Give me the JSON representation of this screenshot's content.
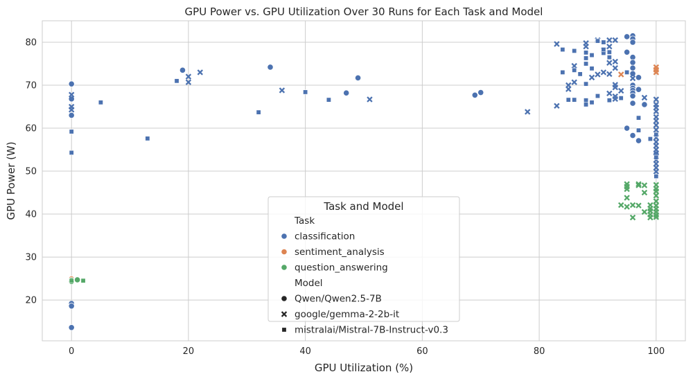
{
  "chart_data": {
    "type": "scatter",
    "title": "GPU Power vs. GPU Utilization Over 30 Runs for Each Task and Model",
    "xlabel": "GPU Utilization (%)",
    "ylabel": "GPU Power (W)",
    "xlim": [
      -5,
      105
    ],
    "ylim": [
      10.5,
      85
    ],
    "xticks": [
      0,
      20,
      40,
      60,
      80,
      100
    ],
    "yticks": [
      20,
      30,
      40,
      50,
      60,
      70,
      80
    ],
    "grid": true,
    "colors": {
      "classification": "#4c72b0",
      "sentiment_analysis": "#dd8452",
      "question_answering": "#55a868",
      "grid": "#cccccc",
      "axes_edge": "#cccccc"
    },
    "legend": {
      "title": "Task and Model",
      "placement": "bottom-center",
      "task_header": "Task",
      "model_header": "Model",
      "tasks": [
        "classification",
        "sentiment_analysis",
        "question_answering"
      ],
      "models": [
        {
          "name": "Qwen/Qwen2.5-7B",
          "marker": "circle"
        },
        {
          "name": "google/gemma-2-2b-it",
          "marker": "x"
        },
        {
          "name": "mistralai/Mistral-7B-Instruct-v0.3",
          "marker": "square"
        }
      ]
    },
    "series": [
      {
        "task": "classification",
        "model": "Qwen/Qwen2.5-7B",
        "marker": "circle",
        "points": [
          [
            0,
            70.3
          ],
          [
            0,
            66.8
          ],
          [
            0,
            63
          ],
          [
            0,
            19.2
          ],
          [
            0,
            18.6
          ],
          [
            0,
            13.6
          ],
          [
            19,
            73.5
          ],
          [
            34,
            74.2
          ],
          [
            47,
            68.2
          ],
          [
            49,
            71.7
          ],
          [
            69,
            67.7
          ],
          [
            70,
            68.3
          ],
          [
            95,
            81.3
          ],
          [
            96,
            81.5
          ],
          [
            96,
            80.8
          ],
          [
            96,
            80
          ],
          [
            95,
            77.7
          ],
          [
            96,
            76.5
          ],
          [
            96,
            75.3
          ],
          [
            96,
            74
          ],
          [
            96,
            72.7
          ],
          [
            96,
            70
          ],
          [
            96,
            69.3
          ],
          [
            96,
            68.8
          ],
          [
            96,
            68.2
          ],
          [
            96,
            67.5
          ],
          [
            96,
            65.8
          ],
          [
            97,
            69
          ],
          [
            97,
            71.8
          ],
          [
            98,
            65.5
          ],
          [
            95,
            60
          ],
          [
            96,
            58.3
          ],
          [
            97,
            57.1
          ],
          [
            100,
            54
          ]
        ]
      },
      {
        "task": "classification",
        "model": "google/gemma-2-2b-it",
        "marker": "x",
        "points": [
          [
            0,
            67.8
          ],
          [
            0,
            65
          ],
          [
            0,
            64.3
          ],
          [
            20,
            72
          ],
          [
            20,
            70.7
          ],
          [
            22,
            73
          ],
          [
            36,
            68.8
          ],
          [
            51,
            66.7
          ],
          [
            78,
            63.8
          ],
          [
            83,
            79.6
          ],
          [
            83,
            65.2
          ],
          [
            85,
            70
          ],
          [
            85,
            69.1
          ],
          [
            86,
            74.5
          ],
          [
            86,
            70.7
          ],
          [
            88,
            79.8
          ],
          [
            88,
            79
          ],
          [
            89,
            71.8
          ],
          [
            90,
            80.5
          ],
          [
            90,
            72.5
          ],
          [
            91,
            73
          ],
          [
            91,
            78.2
          ],
          [
            92,
            80.5
          ],
          [
            92,
            79
          ],
          [
            92,
            75.2
          ],
          [
            92,
            72.6
          ],
          [
            92,
            68.1
          ],
          [
            93,
            80.5
          ],
          [
            93,
            75.5
          ],
          [
            93,
            74
          ],
          [
            93,
            70.1
          ],
          [
            93,
            69.5
          ],
          [
            93,
            67.4
          ],
          [
            93,
            66.8
          ],
          [
            94,
            68.7
          ],
          [
            96,
            71.6
          ],
          [
            98,
            67.1
          ],
          [
            100,
            66.7
          ],
          [
            100,
            65.5
          ],
          [
            100,
            64.8
          ],
          [
            100,
            63.9
          ],
          [
            100,
            62.6
          ],
          [
            100,
            61.7
          ],
          [
            100,
            60.7
          ],
          [
            100,
            59.6
          ],
          [
            100,
            58.7
          ],
          [
            100,
            57.8
          ],
          [
            100,
            56.8
          ],
          [
            100,
            55.9
          ],
          [
            100,
            55
          ],
          [
            100,
            54.2
          ],
          [
            100,
            53.4
          ],
          [
            100,
            52.6
          ],
          [
            100,
            51.7
          ],
          [
            100,
            50.8
          ],
          [
            100,
            49.9
          ]
        ]
      },
      {
        "task": "classification",
        "model": "mistralai/Mistral-7B-Instruct-v0.3",
        "marker": "square",
        "points": [
          [
            0,
            59.2
          ],
          [
            0,
            54.3
          ],
          [
            5,
            66
          ],
          [
            13,
            57.6
          ],
          [
            18,
            71
          ],
          [
            32,
            63.7
          ],
          [
            40,
            68.4
          ],
          [
            44,
            66.6
          ],
          [
            84,
            78.3
          ],
          [
            84,
            73
          ],
          [
            85,
            66.6
          ],
          [
            86,
            78
          ],
          [
            86,
            73.5
          ],
          [
            86,
            66.6
          ],
          [
            87,
            72.6
          ],
          [
            88,
            77.6
          ],
          [
            88,
            76.3
          ],
          [
            88,
            75
          ],
          [
            88,
            70.3
          ],
          [
            88,
            66.5
          ],
          [
            88,
            65.5
          ],
          [
            89,
            77
          ],
          [
            89,
            73.9
          ],
          [
            89,
            66
          ],
          [
            90,
            80.3
          ],
          [
            90,
            67.5
          ],
          [
            91,
            77.5
          ],
          [
            91,
            80
          ],
          [
            91,
            78.3
          ],
          [
            92,
            77.7
          ],
          [
            92,
            76.5
          ],
          [
            92,
            66.5
          ],
          [
            94,
            67
          ],
          [
            95,
            73
          ],
          [
            97,
            62.4
          ],
          [
            97,
            59.5
          ],
          [
            99,
            57.5
          ],
          [
            100,
            58.5
          ],
          [
            100,
            53.2
          ],
          [
            100,
            48.8
          ]
        ]
      },
      {
        "task": "sentiment_analysis",
        "model": "google/gemma-2-2b-it",
        "marker": "x",
        "points": [
          [
            94,
            72.5
          ],
          [
            100,
            74.2
          ],
          [
            100,
            73.6
          ],
          [
            100,
            73
          ]
        ]
      },
      {
        "task": "sentiment_analysis",
        "model": "Qwen/Qwen2.5-7B",
        "marker": "circle",
        "points": [
          [
            0,
            24.9
          ]
        ]
      },
      {
        "task": "question_answering",
        "model": "Qwen/Qwen2.5-7B",
        "marker": "circle",
        "points": [
          [
            0,
            24.6
          ],
          [
            0,
            24.3
          ],
          [
            1,
            24.7
          ]
        ]
      },
      {
        "task": "question_answering",
        "model": "mistralai/Mistral-7B-Instruct-v0.3",
        "marker": "square",
        "points": [
          [
            0,
            24.5
          ],
          [
            2,
            24.5
          ]
        ]
      },
      {
        "task": "question_answering",
        "model": "google/gemma-2-2b-it",
        "marker": "x",
        "points": [
          [
            94,
            42.1
          ],
          [
            95,
            47
          ],
          [
            95,
            46.4
          ],
          [
            95,
            45.8
          ],
          [
            95,
            43.8
          ],
          [
            95,
            41.7
          ],
          [
            96,
            42.1
          ],
          [
            96,
            39.2
          ],
          [
            97,
            47
          ],
          [
            97,
            46.7
          ],
          [
            97,
            42
          ],
          [
            98,
            46.7
          ],
          [
            98,
            45
          ],
          [
            98,
            40.5
          ],
          [
            99,
            42.1
          ],
          [
            99,
            41.3
          ],
          [
            99,
            40.7
          ],
          [
            99,
            39.9
          ],
          [
            99,
            39.2
          ],
          [
            100,
            46.8
          ],
          [
            100,
            45.9
          ],
          [
            100,
            45.3
          ],
          [
            100,
            44.3
          ],
          [
            100,
            43
          ],
          [
            100,
            42
          ],
          [
            100,
            41.2
          ],
          [
            100,
            40.5
          ],
          [
            100,
            39.8
          ],
          [
            100,
            39.3
          ]
        ]
      }
    ]
  }
}
